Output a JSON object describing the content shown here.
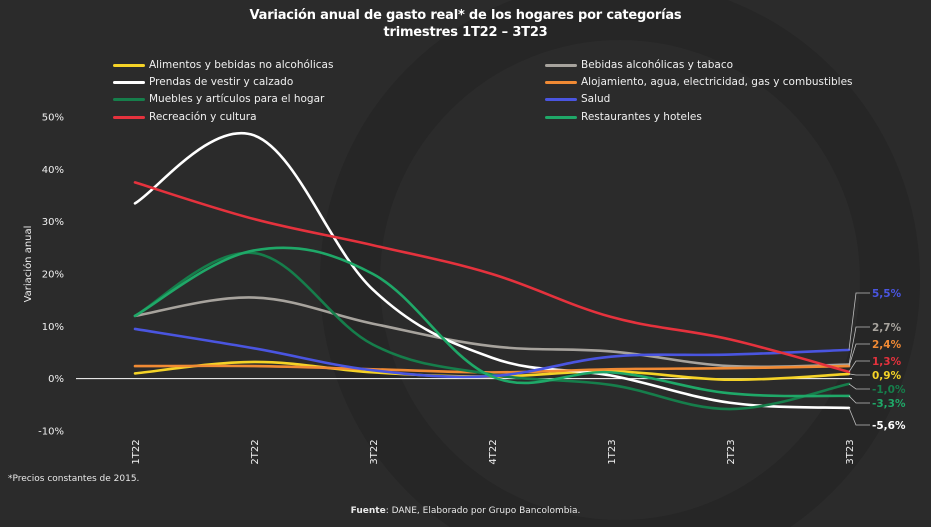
{
  "title_line1": "Variación anual de gasto real* de los hogares por categorías",
  "title_line2": "trimestres 1T22 – 3T23",
  "note": "*Precios constantes de 2015.",
  "source_label": "Fuente",
  "source_text": ": DANE, Elaborado por Grupo Bancolombia.",
  "chart_data": {
    "type": "line",
    "title": "Variación anual de gasto real* de los hogares por categorías trimestres 1T22 – 3T23",
    "xlabel": "",
    "ylabel": "Variación anual",
    "categories": [
      "1T22",
      "2T22",
      "3T22",
      "4T22",
      "1T23",
      "2T23",
      "3T23"
    ],
    "ylim": [
      -10,
      50
    ],
    "yticks": [
      "-10%",
      "0%",
      "10%",
      "20%",
      "30%",
      "40%",
      "50%"
    ],
    "legend_position": "top",
    "series": [
      {
        "name": "Alimentos y bebidas no alcohólicas",
        "color": "#f5d327",
        "values": [
          1.0,
          3.2,
          1.2,
          0.4,
          1.4,
          -0.2,
          0.9
        ],
        "end_label": "0,9%"
      },
      {
        "name": "Bebidas alcohólicas y tabaco",
        "color": "#a7a39d",
        "values": [
          12.0,
          15.5,
          10.5,
          6.2,
          5.2,
          2.4,
          2.7
        ],
        "end_label": "2,7%"
      },
      {
        "name": "Prendas de vestir y calzado",
        "color": "#ffffff",
        "values": [
          33.5,
          46.5,
          17.0,
          4.0,
          0.6,
          -4.6,
          -5.6
        ],
        "end_label": "-5,6%"
      },
      {
        "name": "Alojamiento, agua, electricidad, gas y combustibles",
        "color": "#f08a34",
        "values": [
          2.4,
          2.4,
          1.8,
          1.2,
          1.8,
          2.0,
          2.4
        ],
        "end_label": "2,4%"
      },
      {
        "name": "Muebles y artículos para el hogar",
        "color": "#167e4b",
        "values": [
          12.0,
          24.0,
          6.5,
          0.8,
          -1.2,
          -5.8,
          -1.0
        ],
        "end_label": "-1,0%"
      },
      {
        "name": "Salud",
        "color": "#4a55e0",
        "values": [
          9.5,
          5.8,
          1.6,
          0.5,
          4.2,
          4.6,
          5.5
        ],
        "end_label": "5,5%"
      },
      {
        "name": "Recreación y cultura",
        "color": "#e5323d",
        "values": [
          37.5,
          30.5,
          25.5,
          20.0,
          11.8,
          7.5,
          1.3
        ],
        "end_label": "1,3%"
      },
      {
        "name": "Restaurantes y hoteles",
        "color": "#1fa868",
        "values": [
          12.0,
          24.5,
          20.0,
          0.4,
          1.2,
          -2.8,
          -3.3
        ],
        "end_label": "-3,3%"
      }
    ]
  }
}
